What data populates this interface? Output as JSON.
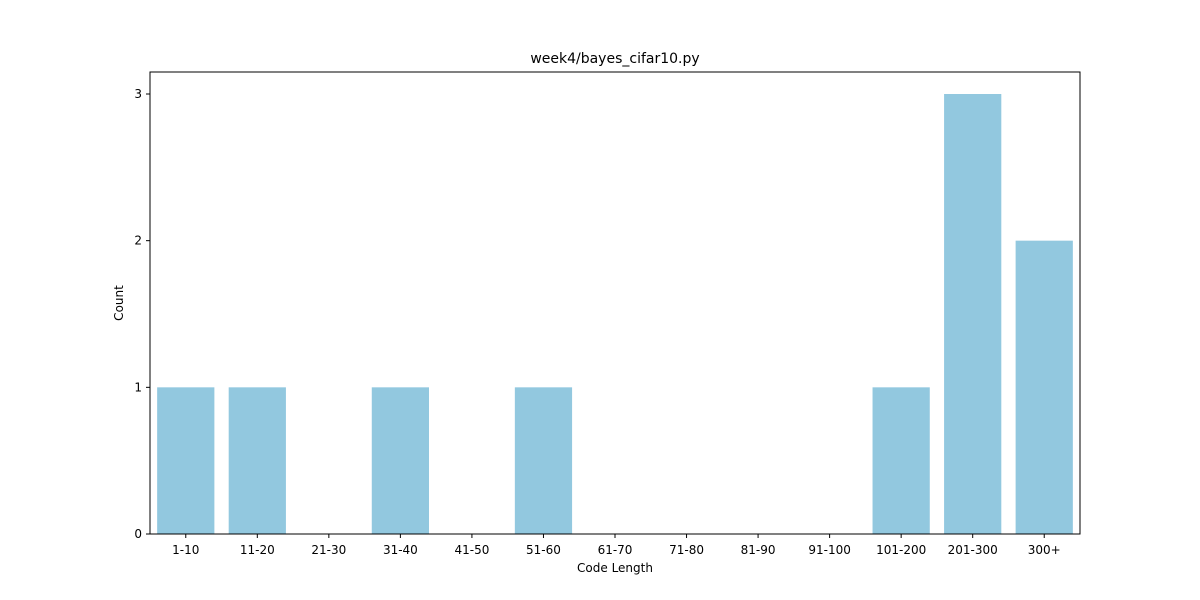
{
  "chart_data": {
    "type": "bar",
    "title": "week4/bayes_cifar10.py",
    "xlabel": "Code Length",
    "ylabel": "Count",
    "categories": [
      "1-10",
      "11-20",
      "21-30",
      "31-40",
      "41-50",
      "51-60",
      "61-70",
      "71-80",
      "81-90",
      "91-100",
      "101-200",
      "201-300",
      "300+"
    ],
    "values": [
      1,
      1,
      0,
      1,
      0,
      1,
      0,
      0,
      0,
      0,
      1,
      3,
      2
    ],
    "ylim": [
      0,
      3.15
    ],
    "yticks": [
      0,
      1,
      2,
      3
    ],
    "bar_color": "#92c8df",
    "grid": false,
    "legend": "none"
  }
}
